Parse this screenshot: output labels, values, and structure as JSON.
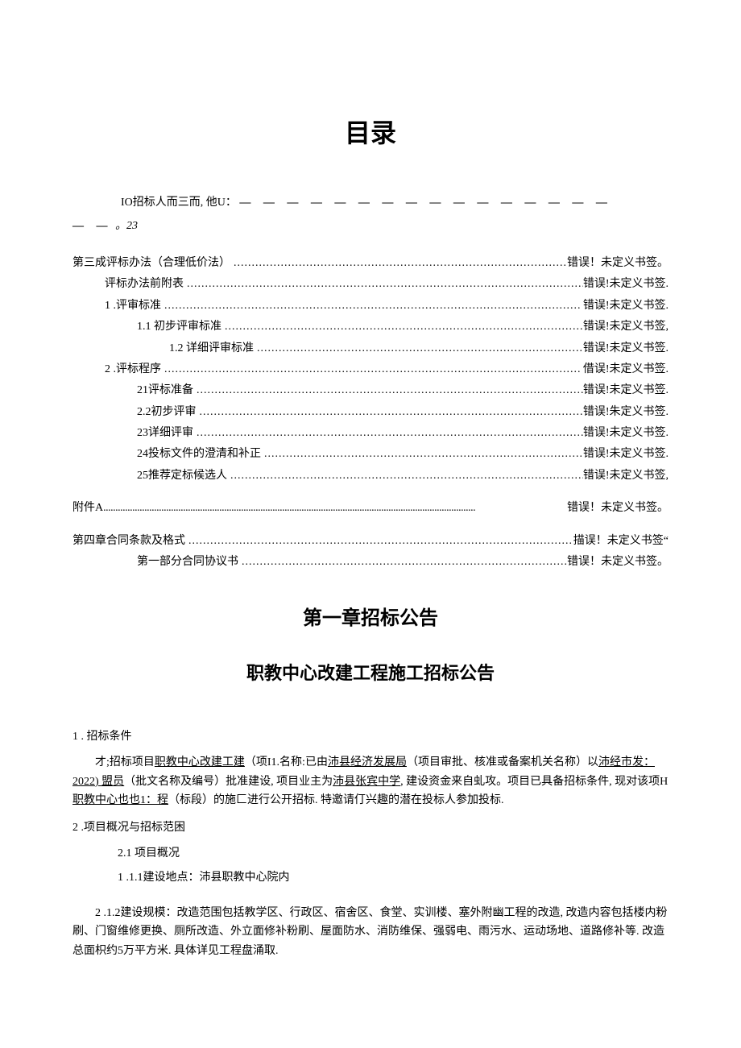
{
  "toc": {
    "title": "目录",
    "line1_prefix": "IO招标人而三而, 他U：",
    "line1_dashes": "— — — — — — — — — — — — — — — —",
    "line2_dashes": "— —",
    "line2_num": "。23",
    "items": [
      {
        "indent": 0,
        "label": "第三成评标办法（合理低价法）",
        "right": "错误！未定义书签。"
      },
      {
        "indent": 1,
        "label": "评标办法前附表",
        "right": "错误!未定义书签."
      },
      {
        "indent": 1,
        "label": "1 .评审标准",
        "right": "错误!未定义书签."
      },
      {
        "indent": 2,
        "label": "1.1  初步评审标准",
        "right": "错误!未定义书签,"
      },
      {
        "indent": 3,
        "label": "1.2  详细评审标准",
        "right": "错误!未定义书签."
      },
      {
        "indent": 1,
        "label": "2   .评标程序",
        "right": "借误!未定义书签."
      },
      {
        "indent": 2,
        "label": "21评标准备",
        "right": "错误!未定义书签."
      },
      {
        "indent": 2,
        "label": "2.2初步评审",
        "right": "错误!朱定义书签."
      },
      {
        "indent": 2,
        "label": "23详细评审",
        "right": "错误!未定义书签."
      },
      {
        "indent": 2,
        "label": "24投标文件的澄清和补正",
        "right": "错误!未定义书签."
      },
      {
        "indent": 2,
        "label": "25推荐定标候选人",
        "right": "错误!未定义书签,"
      }
    ],
    "attachment": {
      "label": "附件A",
      "right": "错误！未定义书签。"
    },
    "chapter4": [
      {
        "indent": 0,
        "label": "第四章合同条款及格式",
        "right": "描误！未定义书签“"
      },
      {
        "indent": 2,
        "label": "第一部分合同协议书",
        "right": "错误！未定义书签。"
      }
    ]
  },
  "chapter1": {
    "title": "第一章招标公告",
    "subtitle": "职教中心改建工程施工招标公告",
    "sec1": {
      "head": "1 . 招标条件",
      "p1_a": "才;招标项目",
      "p1_u1": "职教中心改建工建",
      "p1_b": "（项I1.名称:已由",
      "p1_u2": "沛县经济发展局",
      "p1_c": "（项目审批、核准或备案机关名称）以",
      "p1_u3": "沛经市发：2022) 盟员",
      "p1_d": "（批文名称及编号）批准建设, 项目业主为",
      "p1_u4": "沛县张宾中学",
      "p1_e": ", 建设资金来自虬攻。项目已具备招标条件, 现对该项H",
      "p1_u5": "职教中心也也1：程",
      "p1_f": "（标段）的施匚进行公开招标. 特邀请仃兴趣的潜在投标人参加投标."
    },
    "sec2": {
      "head": "2  .项目概况与招标范困",
      "s21": "2.1   项目概况",
      "s211": "1  .1.1建设地点：沛县职教中心院内",
      "s212": "2  .1.2建设规模：改造范围包括教学区、行政区、宿舍区、食堂、实训楼、塞外附幽工程的改造, 改造内容包括楼内粉刷、门窗维修更换、厕所改造、外立面修补粉刷、屋面防水、消防维保、强弱电、雨污水、运动场地、道路修补等. 改造总面枳约5万平方米. 具体详见工程盘涌取."
    }
  },
  "colors": {
    "text": "#000000",
    "background": "#ffffff"
  }
}
